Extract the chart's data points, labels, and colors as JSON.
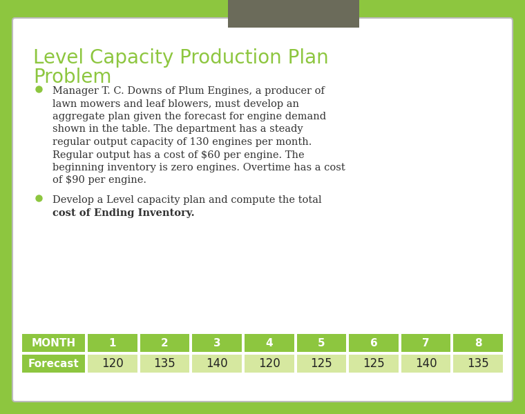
{
  "title_line1": "Level Capacity Production Plan",
  "title_line2": "Problem",
  "title_color": "#8dc63f",
  "background_outer": "#8dc63f",
  "background_inner": "#ffffff",
  "tab_color": "#6b6b5a",
  "bullet_color": "#8dc63f",
  "bullet1_lines": [
    "Manager T. C. Downs of Plum Engines, a producer of",
    "lawn mowers and leaf blowers, must develop an",
    "aggregate plan given the forecast for engine demand",
    "shown in the table. The department has a steady",
    "regular output capacity of 130 engines per month.",
    "Regular output has a cost of $60 per engine. The",
    "beginning inventory is zero engines. Overtime has a cost",
    "of $90 per engine."
  ],
  "bullet2_line1": "Develop a Level capacity plan and compute the total",
  "bullet2_line2_normal": "cost of Ending Inventory",
  "bullet2_line2_bold": "cost of Ending Inventory",
  "table_header_bg": "#8dc63f",
  "table_header_text": "#ffffff",
  "table_row_label_bg": "#8dc63f",
  "table_row_label_text": "#ffffff",
  "table_data_bg": "#d6e8a0",
  "table_data_text": "#222222",
  "table_border_color": "#ffffff",
  "months": [
    "1",
    "2",
    "3",
    "4",
    "5",
    "6",
    "7",
    "8"
  ],
  "forecast": [
    120,
    135,
    140,
    120,
    125,
    125,
    140,
    135
  ],
  "text_color": "#333333",
  "title_fontsize": 20,
  "body_fontsize": 10.5,
  "table_header_fontsize": 11,
  "table_data_fontsize": 12
}
